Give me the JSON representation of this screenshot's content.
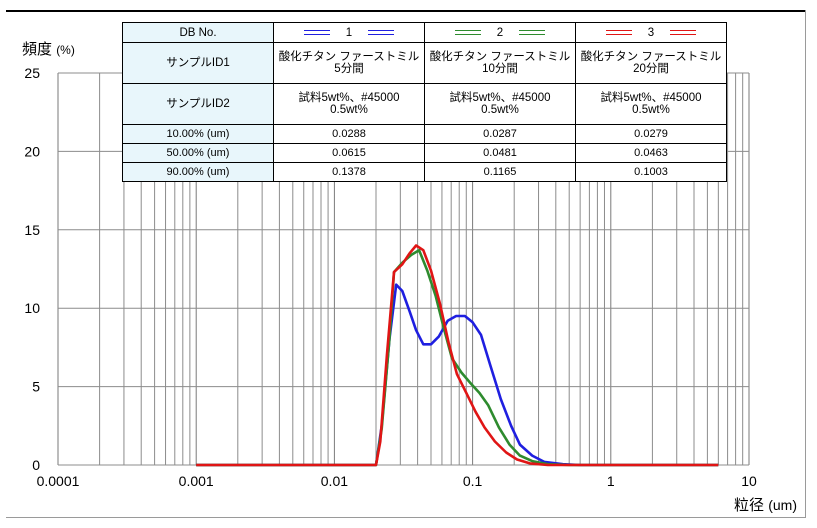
{
  "chart_data": {
    "type": "line",
    "title": "",
    "ylabel": "頻度",
    "ylabel_unit": "(%)",
    "xlabel": "粒径",
    "xlabel_unit": "(um)",
    "x_scale": "log",
    "xlim": [
      0.0001,
      10
    ],
    "ylim": [
      0,
      25
    ],
    "grid": true,
    "x_ticks": [
      "0.0001",
      "0.001",
      "0.01",
      "0.1",
      "1",
      "10"
    ],
    "y_ticks": [
      "0",
      "5",
      "10",
      "15",
      "20",
      "25"
    ],
    "series": [
      {
        "name": "1",
        "color": "#1f1fe0",
        "points": [
          [
            0.001,
            0
          ],
          [
            0.02,
            0
          ],
          [
            0.022,
            2.5
          ],
          [
            0.025,
            8
          ],
          [
            0.028,
            11.5
          ],
          [
            0.031,
            11.1
          ],
          [
            0.035,
            9.8
          ],
          [
            0.039,
            8.6
          ],
          [
            0.044,
            7.7
          ],
          [
            0.05,
            7.7
          ],
          [
            0.057,
            8.2
          ],
          [
            0.066,
            9.2
          ],
          [
            0.076,
            9.5
          ],
          [
            0.088,
            9.5
          ],
          [
            0.1,
            9.1
          ],
          [
            0.115,
            8.3
          ],
          [
            0.135,
            6.3
          ],
          [
            0.16,
            4.2
          ],
          [
            0.19,
            2.5
          ],
          [
            0.22,
            1.3
          ],
          [
            0.27,
            0.6
          ],
          [
            0.33,
            0.2
          ],
          [
            0.45,
            0.05
          ],
          [
            0.6,
            0
          ],
          [
            6,
            0
          ]
        ]
      },
      {
        "name": "2",
        "color": "#2e8b2e",
        "points": [
          [
            0.001,
            0
          ],
          [
            0.02,
            0
          ],
          [
            0.022,
            2.3
          ],
          [
            0.025,
            8
          ],
          [
            0.027,
            12.3
          ],
          [
            0.031,
            12.9
          ],
          [
            0.036,
            13.4
          ],
          [
            0.041,
            13.7
          ],
          [
            0.047,
            12.4
          ],
          [
            0.054,
            10.8
          ],
          [
            0.062,
            8.7
          ],
          [
            0.071,
            6.8
          ],
          [
            0.083,
            5.9
          ],
          [
            0.097,
            5.2
          ],
          [
            0.112,
            4.6
          ],
          [
            0.13,
            3.8
          ],
          [
            0.155,
            2.4
          ],
          [
            0.185,
            1.3
          ],
          [
            0.22,
            0.6
          ],
          [
            0.27,
            0.25
          ],
          [
            0.35,
            0.05
          ],
          [
            0.5,
            0
          ],
          [
            6,
            0
          ]
        ]
      },
      {
        "name": "3",
        "color": "#e01515",
        "points": [
          [
            0.001,
            0
          ],
          [
            0.02,
            0
          ],
          [
            0.0215,
            1.5
          ],
          [
            0.024,
            7
          ],
          [
            0.027,
            12.3
          ],
          [
            0.031,
            12.8
          ],
          [
            0.035,
            13.5
          ],
          [
            0.039,
            14.0
          ],
          [
            0.044,
            13.7
          ],
          [
            0.05,
            12.4
          ],
          [
            0.058,
            10.3
          ],
          [
            0.067,
            7.8
          ],
          [
            0.077,
            5.8
          ],
          [
            0.09,
            4.6
          ],
          [
            0.105,
            3.4
          ],
          [
            0.122,
            2.4
          ],
          [
            0.145,
            1.5
          ],
          [
            0.175,
            0.8
          ],
          [
            0.21,
            0.35
          ],
          [
            0.26,
            0.1
          ],
          [
            0.35,
            0
          ],
          [
            6,
            0
          ]
        ]
      }
    ]
  },
  "legend_table": {
    "db_label": "DB No.",
    "id1_label": "サンプルID1",
    "id2_label": "サンプルID2",
    "columns": [
      {
        "db": "1",
        "color": "#1f1fe0",
        "id1_a": "酸化チタン ファーストミル",
        "id1_b": "5分間",
        "id2_a": "試料5wt%、#45000",
        "id2_b": "0.5wt%"
      },
      {
        "db": "2",
        "color": "#2e8b2e",
        "id1_a": "酸化チタン ファーストミル",
        "id1_b": "10分間",
        "id2_a": "試料5wt%、#45000",
        "id2_b": "0.5wt%"
      },
      {
        "db": "3",
        "color": "#e01515",
        "id1_a": "酸化チタン ファーストミル",
        "id1_b": "20分間",
        "id2_a": "試料5wt%、#45000",
        "id2_b": "0.5wt%"
      }
    ],
    "rows": [
      {
        "label": "10.00% (um)",
        "values": [
          "0.0288",
          "0.0287",
          "0.0279"
        ]
      },
      {
        "label": "50.00% (um)",
        "values": [
          "0.0615",
          "0.0481",
          "0.0463"
        ]
      },
      {
        "label": "90.00% (um)",
        "values": [
          "0.1378",
          "0.1165",
          "0.1003"
        ]
      }
    ]
  }
}
